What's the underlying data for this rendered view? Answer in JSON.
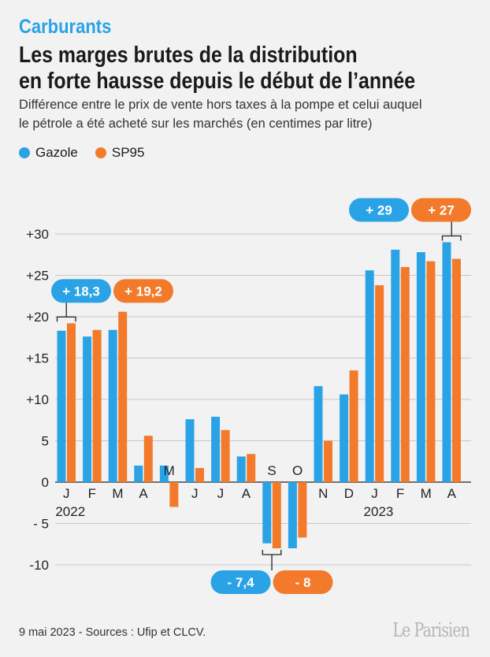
{
  "header": {
    "kicker": "Carburants",
    "title_line1": "Les marges brutes de la distribution",
    "title_line2": "en forte hausse depuis le début de l’année",
    "subtitle_line1": "Différence entre le prix de vente hors taxes à la pompe et celui auquel",
    "subtitle_line2": "le pétrole a été acheté sur les marchés (en centimes par litre)"
  },
  "colors": {
    "gazole": "#2aa3e6",
    "sp95": "#f27a2a"
  },
  "chart_data": {
    "type": "bar",
    "categories": [
      "J",
      "F",
      "M",
      "A",
      "M",
      "J",
      "J",
      "A",
      "S",
      "O",
      "N",
      "D",
      "J",
      "F",
      "M",
      "A"
    ],
    "year_labels": [
      {
        "label": "2022",
        "index": 0
      },
      {
        "label": "2023",
        "index": 12
      }
    ],
    "series": [
      {
        "name": "Gazole",
        "values": [
          18.3,
          17.6,
          18.4,
          2.0,
          2.0,
          7.6,
          7.9,
          3.1,
          -7.4,
          -8.0,
          11.6,
          10.6,
          25.6,
          28.1,
          27.8,
          29.0
        ]
      },
      {
        "name": "SP95",
        "values": [
          19.2,
          18.4,
          20.6,
          5.6,
          -3.0,
          1.7,
          6.3,
          3.4,
          -8.0,
          -6.7,
          5.0,
          13.5,
          23.8,
          26.0,
          26.7,
          27.0
        ]
      }
    ],
    "ylim": [
      -10,
      30
    ],
    "yticks": [
      -10,
      -5,
      0,
      5,
      10,
      15,
      20,
      25,
      30
    ],
    "ytick_labels": [
      "-10",
      "- 5",
      "0",
      "5",
      "+10",
      "+15",
      "+20",
      "+25",
      "+30"
    ],
    "grid": true,
    "legend": "top-left",
    "annotations": [
      {
        "text": "+ 18,3",
        "series": "Gazole",
        "index": 0
      },
      {
        "text": "+ 19,2",
        "series": "SP95",
        "index": 0
      },
      {
        "text": "- 7,4",
        "series": "Gazole",
        "index": 8
      },
      {
        "text": "- 8",
        "series": "SP95",
        "index": 8
      },
      {
        "text": "+ 29",
        "series": "Gazole",
        "index": 15
      },
      {
        "text": "+ 27",
        "series": "SP95",
        "index": 15
      }
    ]
  },
  "footer": {
    "source": "9 mai 2023 - Sources : Ufip et CLCV.",
    "logo": "Le Parisien"
  }
}
